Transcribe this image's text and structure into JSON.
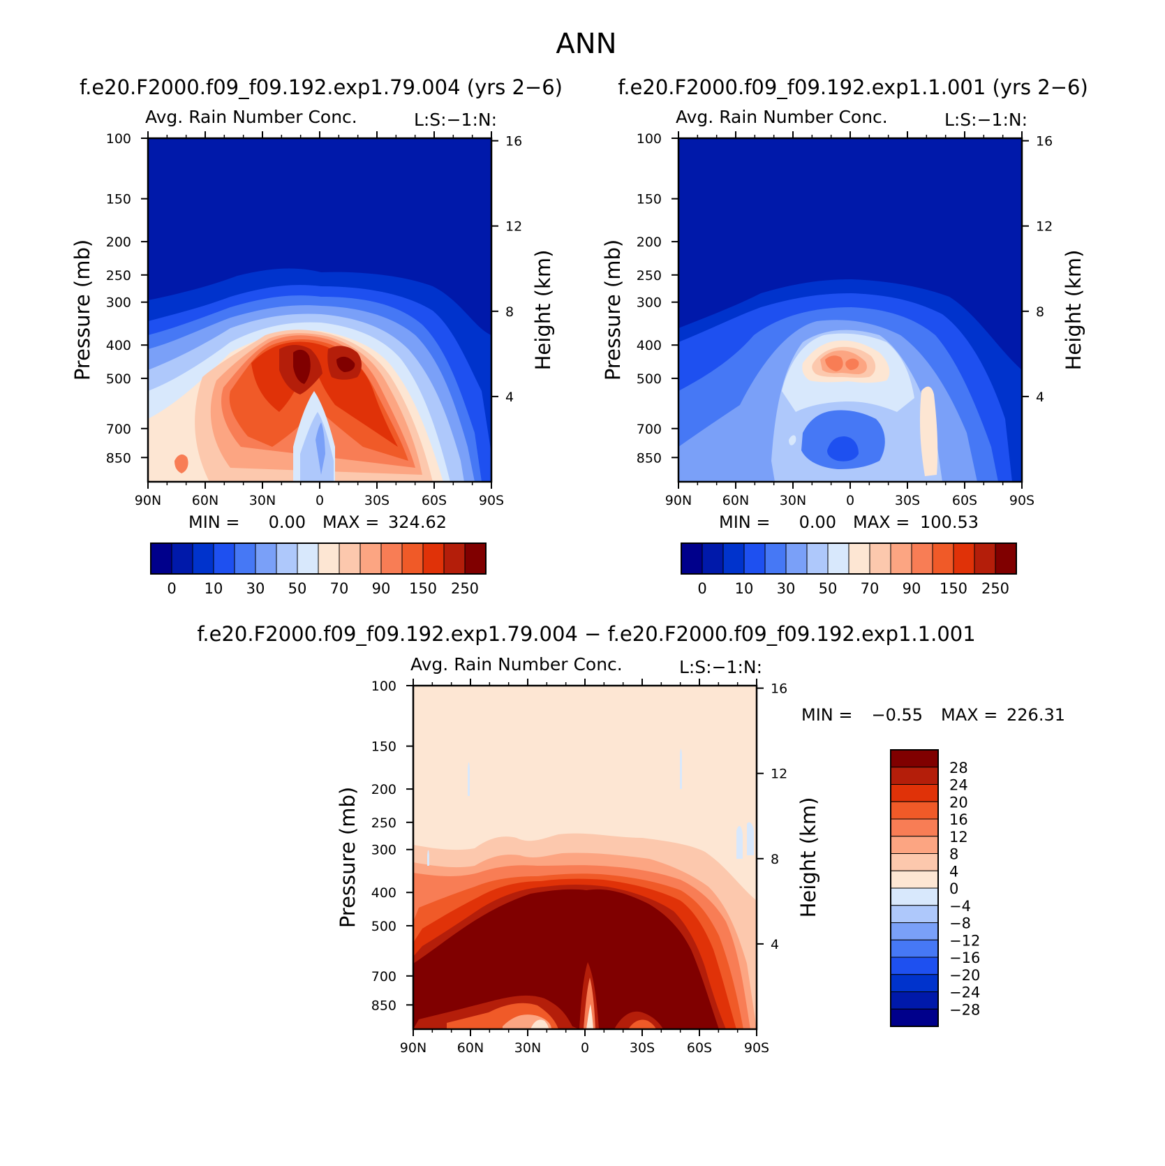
{
  "figure": {
    "season": "ANN",
    "diff_title": "f.e20.F2000.f09_f09.192.exp1.79.004 − f.e20.F2000.f09_f09.192.exp1.1.001"
  },
  "colors": {
    "abs_scale": [
      "#00008b",
      "#0019aa",
      "#0033cc",
      "#1e50f0",
      "#4678f5",
      "#7aa0f8",
      "#aec8fb",
      "#d8e8fc",
      "#fde6d3",
      "#fcc8ad",
      "#fca582",
      "#f87d55",
      "#f05a28",
      "#e03208",
      "#b41e0a",
      "#800000"
    ],
    "diff_scale": [
      "#800000",
      "#b41e0a",
      "#e03208",
      "#f05a28",
      "#f87d55",
      "#fca582",
      "#fcc8ad",
      "#fde6d3",
      "#d8e8fc",
      "#aec8fb",
      "#7aa0f8",
      "#4678f5",
      "#1e50f0",
      "#0033cc",
      "#0019aa",
      "#00008b"
    ]
  },
  "chart_data": [
    {
      "type": "heatmap",
      "panel": "model",
      "run_title": "f.e20.F2000.f09_f09.192.exp1.79.004 (yrs 2−6)",
      "title": "Avg. Rain Number Conc.",
      "corner_label": "L:S:−1:N:",
      "xlabel": "",
      "ylabel": "Pressure (mb)",
      "y2label": "Height (km)",
      "x_ticks": [
        "90N",
        "60N",
        "30N",
        "0",
        "30S",
        "60S",
        "90S"
      ],
      "y_ticks": [
        "100",
        "150",
        "200",
        "250",
        "300",
        "400",
        "500",
        "700",
        "850"
      ],
      "y2_ticks": [
        "16",
        "12",
        "8",
        "4"
      ],
      "stats": {
        "min_label": "MIN =",
        "min": "0.00",
        "max_label": "MAX =",
        "max": "324.62"
      },
      "colorbar": {
        "labels": [
          "0",
          "10",
          "30",
          "50",
          "70",
          "90",
          "150",
          "250"
        ],
        "orientation": "horizontal"
      },
      "y_scale": "log-pressure",
      "x_range": [
        "90N",
        "90S"
      ],
      "y_range": [
        1000,
        100
      ]
    },
    {
      "type": "heatmap",
      "panel": "control",
      "run_title": "f.e20.F2000.f09_f09.192.exp1.1.001 (yrs 2−6)",
      "title": "Avg. Rain Number Conc.",
      "corner_label": "L:S:−1:N:",
      "xlabel": "",
      "ylabel": "Pressure (mb)",
      "y2label": "Height (km)",
      "x_ticks": [
        "90N",
        "60N",
        "30N",
        "0",
        "30S",
        "60S",
        "90S"
      ],
      "y_ticks": [
        "100",
        "150",
        "200",
        "250",
        "300",
        "400",
        "500",
        "700",
        "850"
      ],
      "y2_ticks": [
        "16",
        "12",
        "8",
        "4"
      ],
      "stats": {
        "min_label": "MIN =",
        "min": "0.00",
        "max_label": "MAX =",
        "max": "100.53"
      },
      "colorbar": {
        "labels": [
          "0",
          "10",
          "30",
          "50",
          "70",
          "90",
          "150",
          "250"
        ],
        "orientation": "horizontal"
      },
      "y_scale": "log-pressure",
      "x_range": [
        "90N",
        "90S"
      ],
      "y_range": [
        1000,
        100
      ]
    },
    {
      "type": "heatmap",
      "panel": "difference",
      "title": "Avg. Rain Number Conc.",
      "corner_label": "L:S:−1:N:",
      "xlabel": "",
      "ylabel": "Pressure (mb)",
      "y2label": "Height (km)",
      "x_ticks": [
        "90N",
        "60N",
        "30N",
        "0",
        "30S",
        "60S",
        "90S"
      ],
      "y_ticks": [
        "100",
        "150",
        "200",
        "250",
        "300",
        "400",
        "500",
        "700",
        "850"
      ],
      "y2_ticks": [
        "16",
        "12",
        "8",
        "4"
      ],
      "stats": {
        "min_label": "MIN =",
        "min": "−0.55",
        "max_label": "MAX =",
        "max": "226.31"
      },
      "colorbar": {
        "labels": [
          "28",
          "24",
          "20",
          "16",
          "12",
          "8",
          "4",
          "0",
          "−4",
          "−8",
          "−12",
          "−16",
          "−20",
          "−24",
          "−28"
        ],
        "orientation": "vertical"
      },
      "y_scale": "log-pressure",
      "x_range": [
        "90N",
        "90S"
      ],
      "y_range": [
        1000,
        100
      ]
    }
  ]
}
